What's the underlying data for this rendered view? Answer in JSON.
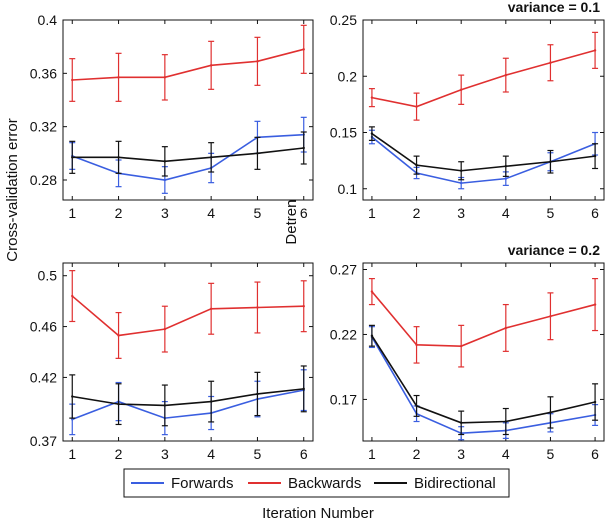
{
  "chart_data": [
    {
      "type": "line",
      "panel": "top-left",
      "x": [
        1,
        2,
        3,
        4,
        5,
        6
      ],
      "xlim": [
        0.8,
        6.2
      ],
      "ylim": [
        0.265,
        0.4
      ],
      "yticks": [
        0.28,
        0.32,
        0.36,
        0.4
      ],
      "ytick_labels": [
        "0.28",
        "0.32",
        "0.36",
        "0.4"
      ],
      "variance_label": "",
      "series": [
        {
          "name": "Backwards",
          "values": [
            0.355,
            0.357,
            0.357,
            0.366,
            0.369,
            0.378
          ],
          "errors": [
            0.016,
            0.018,
            0.017,
            0.018,
            0.018,
            0.018
          ]
        },
        {
          "name": "Forwards",
          "values": [
            0.298,
            0.285,
            0.28,
            0.289,
            0.312,
            0.314
          ],
          "errors": [
            0.01,
            0.01,
            0.01,
            0.011,
            0.012,
            0.013
          ]
        },
        {
          "name": "Bidirectional",
          "values": [
            0.297,
            0.297,
            0.294,
            0.297,
            0.3,
            0.304
          ],
          "errors": [
            0.012,
            0.012,
            0.011,
            0.011,
            0.012,
            0.012
          ]
        }
      ]
    },
    {
      "type": "line",
      "panel": "top-right",
      "x": [
        1,
        2,
        3,
        4,
        5,
        6
      ],
      "xlim": [
        0.8,
        6.2
      ],
      "ylim": [
        0.09,
        0.25
      ],
      "yticks": [
        0.1,
        0.15,
        0.2,
        0.25
      ],
      "ytick_labels": [
        "0.1",
        "0.15",
        "0.2",
        "0.25"
      ],
      "variance_label": "variance = 0.1",
      "series": [
        {
          "name": "Backwards",
          "values": [
            0.181,
            0.173,
            0.188,
            0.201,
            0.212,
            0.223
          ],
          "errors": [
            0.008,
            0.012,
            0.013,
            0.015,
            0.016,
            0.016
          ]
        },
        {
          "name": "Forwards",
          "values": [
            0.146,
            0.114,
            0.105,
            0.109,
            0.124,
            0.14
          ],
          "errors": [
            0.006,
            0.005,
            0.005,
            0.006,
            0.008,
            0.01
          ]
        },
        {
          "name": "Bidirectional",
          "values": [
            0.149,
            0.121,
            0.116,
            0.12,
            0.124,
            0.129
          ],
          "errors": [
            0.006,
            0.008,
            0.008,
            0.009,
            0.01,
            0.011
          ]
        }
      ]
    },
    {
      "type": "line",
      "panel": "bottom-left",
      "x": [
        1,
        2,
        3,
        4,
        5,
        6
      ],
      "xlim": [
        0.8,
        6.2
      ],
      "ylim": [
        0.37,
        0.51
      ],
      "yticks": [
        0.37,
        0.42,
        0.46,
        0.5
      ],
      "ytick_labels": [
        "0.37",
        "0.42",
        "0.46",
        "0.5"
      ],
      "variance_label": "",
      "series": [
        {
          "name": "Backwards",
          "values": [
            0.484,
            0.453,
            0.458,
            0.474,
            0.475,
            0.476
          ],
          "errors": [
            0.02,
            0.018,
            0.018,
            0.02,
            0.02,
            0.02
          ]
        },
        {
          "name": "Forwards",
          "values": [
            0.387,
            0.401,
            0.388,
            0.392,
            0.403,
            0.41
          ],
          "errors": [
            0.012,
            0.015,
            0.013,
            0.013,
            0.014,
            0.016
          ]
        },
        {
          "name": "Bidirectional",
          "values": [
            0.405,
            0.399,
            0.398,
            0.401,
            0.407,
            0.411
          ],
          "errors": [
            0.017,
            0.016,
            0.016,
            0.016,
            0.017,
            0.018
          ]
        }
      ]
    },
    {
      "type": "line",
      "panel": "bottom-right",
      "x": [
        1,
        2,
        3,
        4,
        5,
        6
      ],
      "xlim": [
        0.8,
        6.2
      ],
      "ylim": [
        0.138,
        0.275
      ],
      "yticks": [
        0.17,
        0.22,
        0.27
      ],
      "ytick_labels": [
        "0.17",
        "0.22",
        "0.27"
      ],
      "variance_label": "variance = 0.2",
      "series": [
        {
          "name": "Backwards",
          "values": [
            0.253,
            0.212,
            0.211,
            0.225,
            0.234,
            0.243
          ],
          "errors": [
            0.01,
            0.014,
            0.016,
            0.018,
            0.018,
            0.02
          ]
        },
        {
          "name": "Forwards",
          "values": [
            0.218,
            0.159,
            0.144,
            0.146,
            0.152,
            0.158
          ],
          "errors": [
            0.008,
            0.006,
            0.005,
            0.006,
            0.007,
            0.008
          ]
        },
        {
          "name": "Bidirectional",
          "values": [
            0.219,
            0.165,
            0.152,
            0.153,
            0.16,
            0.168
          ],
          "errors": [
            0.008,
            0.008,
            0.009,
            0.01,
            0.012,
            0.014
          ]
        }
      ]
    }
  ],
  "labels": {
    "ylabel_left": "Cross-validation error",
    "ylabel_right": "Detrending error",
    "xlabel": "Iteration Number"
  },
  "legend": [
    {
      "name": "Forwards",
      "color": "#3a5ee0"
    },
    {
      "name": "Backwards",
      "color": "#e03030"
    },
    {
      "name": "Bidirectional",
      "color": "#111111"
    }
  ]
}
